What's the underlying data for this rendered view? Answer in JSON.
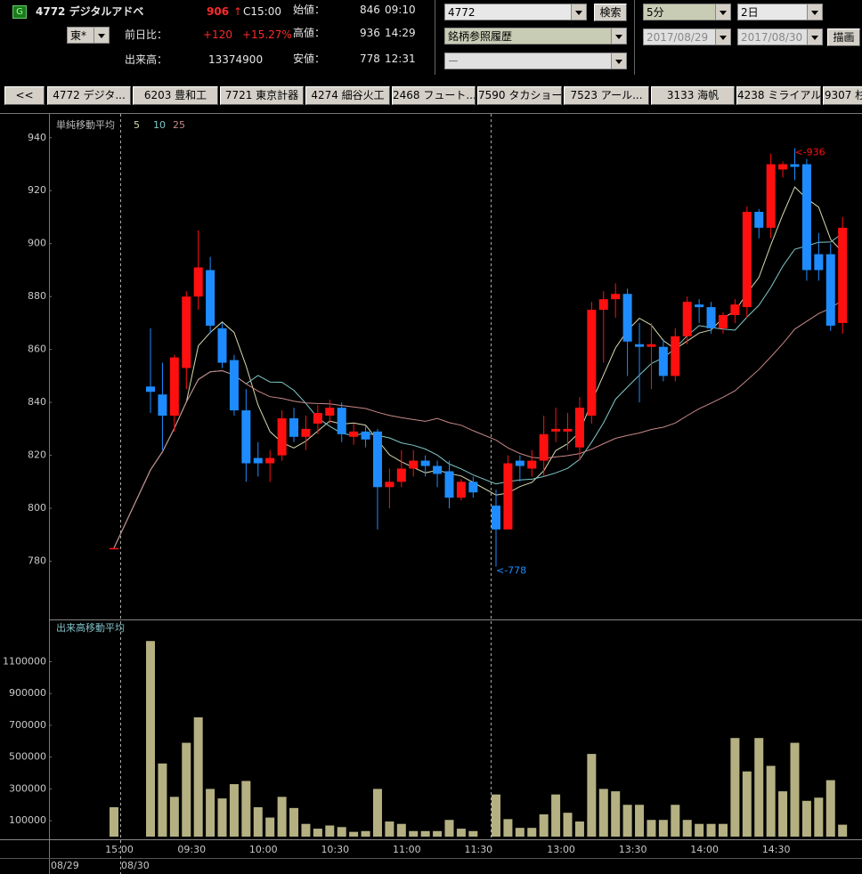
{
  "header": {
    "badge": "G",
    "name": "4772 デジタルアドベ",
    "price": "906",
    "arrow": "↑",
    "close_time": "C15:00",
    "market": "東*",
    "change_label": "前日比：",
    "change": "+120",
    "change_pct": "+15.27%",
    "volume_label": "出来高：",
    "volume": "13374900",
    "open_label": "始値：",
    "open": "846",
    "open_time": "09:10",
    "high_label": "高値：",
    "high": "936",
    "high_time": "14:29",
    "low_label": "安値：",
    "low": "778",
    "low_time": "12:31"
  },
  "controls": {
    "code": "4772",
    "search": "検索",
    "history": "銘柄参照履歴",
    "sub": "ー",
    "interval": "5分",
    "span": "2日",
    "date_from": "2017/08/29",
    "date_to": "2017/08/30",
    "draw": "描画"
  },
  "tabs": [
    "<<",
    "4772 デジタ...",
    "6203 豊和工",
    "7721 東京計器",
    "4274 細谷火工",
    "2468 フュート...",
    "7590 タカショー",
    "7523 アール...",
    "3133 海帆",
    "4238 ミライアル",
    "9307 杉"
  ],
  "chart_data": {
    "type": "candlestick",
    "ma_label": "単純移動平均",
    "ma_periods": [
      5,
      10,
      25
    ],
    "ma_colors": [
      "#d8d8b0",
      "#80c8c8",
      "#c88888"
    ],
    "volume_label": "出来高移動平均",
    "up_color": "#ff1010",
    "down_color": "#1e8cff",
    "volume_color": "#b4b082",
    "annotations": {
      "high": "<-936",
      "low": "<-778"
    },
    "date_labels": [
      "08/29",
      "08/30"
    ],
    "categories": [
      "15:00",
      null,
      null,
      null,
      "09:30",
      null,
      null,
      null,
      null,
      null,
      "10:00",
      null,
      null,
      null,
      null,
      null,
      "10:30",
      null,
      null,
      null,
      null,
      null,
      "11:00",
      null,
      null,
      null,
      null,
      null,
      "11:30",
      null,
      null,
      null,
      null,
      null,
      "13:00",
      null,
      null,
      null,
      null,
      null,
      "13:30",
      null,
      null,
      null,
      null,
      null,
      "14:00",
      null,
      null,
      null,
      null,
      null,
      "14:30",
      null,
      null,
      null,
      null,
      null,
      null
    ],
    "open": [
      785,
      846,
      843,
      835,
      853,
      880,
      890,
      868,
      856,
      837,
      819,
      817,
      820,
      834,
      827,
      832,
      835,
      838,
      827,
      829,
      829,
      808,
      810,
      815,
      818,
      816,
      814,
      804,
      810,
      801,
      792,
      818,
      815,
      818,
      829,
      829,
      823,
      835,
      875,
      879,
      881,
      862,
      861,
      861,
      850,
      865,
      877,
      876,
      868,
      873,
      876,
      912,
      906,
      928,
      930,
      930,
      896,
      896,
      870
    ],
    "high": [
      785,
      868,
      855,
      858,
      882,
      905,
      895,
      870,
      858,
      845,
      825,
      822,
      837,
      838,
      835,
      839,
      841,
      840,
      832,
      831,
      830,
      815,
      822,
      822,
      820,
      818,
      818,
      811,
      812,
      807,
      820,
      820,
      822,
      835,
      838,
      836,
      842,
      878,
      882,
      885,
      883,
      870,
      870,
      864,
      868,
      880,
      879,
      878,
      874,
      879,
      914,
      913,
      934,
      931,
      936,
      932,
      904,
      900,
      910
    ],
    "low": [
      785,
      836,
      822,
      829,
      845,
      875,
      866,
      853,
      835,
      810,
      812,
      810,
      818,
      825,
      822,
      828,
      832,
      825,
      824,
      823,
      792,
      800,
      808,
      812,
      812,
      808,
      800,
      803,
      804,
      778,
      792,
      810,
      812,
      812,
      825,
      822,
      818,
      832,
      855,
      872,
      850,
      840,
      845,
      848,
      848,
      862,
      870,
      866,
      866,
      870,
      872,
      902,
      902,
      925,
      924,
      886,
      886,
      867,
      866
    ],
    "close": [
      785,
      844,
      835,
      857,
      880,
      891,
      869,
      855,
      837,
      817,
      817,
      819,
      834,
      827,
      830,
      836,
      838,
      828,
      829,
      826,
      808,
      810,
      815,
      818,
      816,
      813,
      804,
      810,
      806,
      792,
      817,
      816,
      818,
      828,
      830,
      830,
      838,
      875,
      879,
      881,
      863,
      861,
      862,
      850,
      865,
      878,
      876,
      868,
      873,
      877,
      912,
      906,
      930,
      930,
      929,
      890,
      890,
      869,
      906
    ],
    "volume": [
      185000,
      1230000,
      460000,
      250000,
      590000,
      750000,
      300000,
      240000,
      330000,
      350000,
      185000,
      120000,
      250000,
      180000,
      80000,
      50000,
      70000,
      60000,
      30000,
      35000,
      300000,
      95000,
      80000,
      35000,
      35000,
      35000,
      105000,
      50000,
      35000,
      265000,
      110000,
      55000,
      55000,
      140000,
      265000,
      150000,
      95000,
      520000,
      300000,
      285000,
      200000,
      200000,
      105000,
      105000,
      200000,
      105000,
      80000,
      80000,
      80000,
      620000,
      410000,
      620000,
      445000,
      285000,
      590000,
      225000,
      245000,
      355000,
      75000
    ],
    "ylim": [
      758,
      949
    ],
    "yticks": [
      780,
      800,
      820,
      840,
      860,
      880,
      900,
      920,
      940
    ],
    "volume_ylim": [
      0,
      1360000
    ],
    "volume_yticks": [
      100000,
      300000,
      500000,
      700000,
      900000,
      1100000
    ]
  }
}
